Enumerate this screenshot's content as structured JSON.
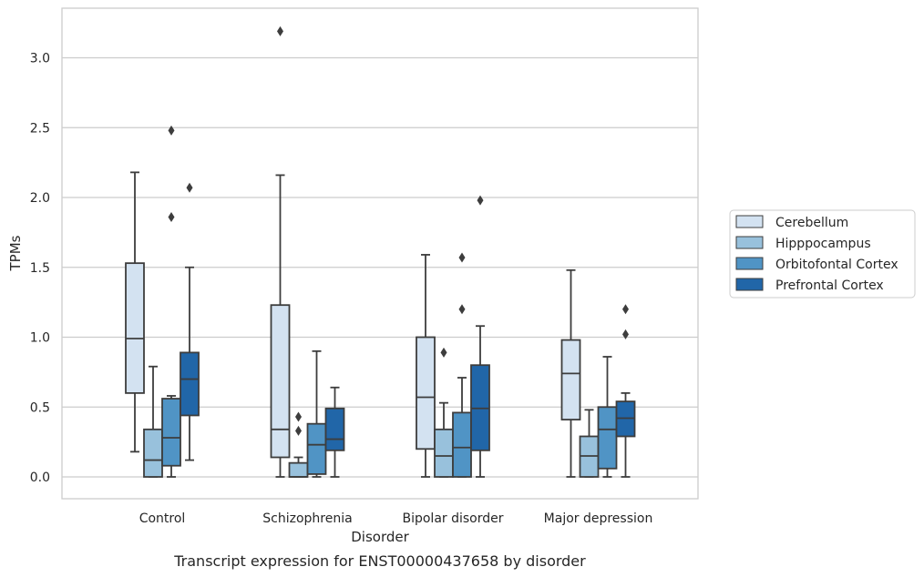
{
  "chart_data": {
    "type": "box",
    "title": "",
    "caption": "Transcript expression for ENST00000437658 by disorder",
    "xlabel": "Disorder",
    "ylabel": "TPMs",
    "ylim": [
      -0.15,
      3.35
    ],
    "yticks": [
      "0.0",
      "0.5",
      "1.0",
      "1.5",
      "2.0",
      "2.5",
      "3.0"
    ],
    "grid": "horizontal",
    "legend_position": "right",
    "categories": [
      "Control",
      "Schizophrenia",
      "Bipolar disorder",
      "Major depression"
    ],
    "series": [
      {
        "name": "Cerebellum",
        "color": "#d3e2f1",
        "boxes": [
          {
            "whislo": 0.18,
            "q1": 0.6,
            "med": 0.99,
            "q3": 1.53,
            "whishi": 2.18,
            "fliers": []
          },
          {
            "whislo": 0.0,
            "q1": 0.14,
            "med": 0.34,
            "q3": 1.23,
            "whishi": 2.16,
            "fliers": [
              3.19
            ]
          },
          {
            "whislo": 0.0,
            "q1": 0.2,
            "med": 0.57,
            "q3": 1.0,
            "whishi": 1.59,
            "fliers": []
          },
          {
            "whislo": 0.0,
            "q1": 0.41,
            "med": 0.74,
            "q3": 0.98,
            "whishi": 1.48,
            "fliers": []
          }
        ]
      },
      {
        "name": "Hipppocampus",
        "color": "#98c1dc",
        "boxes": [
          {
            "whislo": 0.0,
            "q1": 0.0,
            "med": 0.12,
            "q3": 0.34,
            "whishi": 0.79,
            "fliers": []
          },
          {
            "whislo": 0.0,
            "q1": 0.0,
            "med": 0.0,
            "q3": 0.1,
            "whishi": 0.14,
            "fliers": [
              0.33,
              0.43
            ]
          },
          {
            "whislo": 0.0,
            "q1": 0.0,
            "med": 0.15,
            "q3": 0.34,
            "whishi": 0.53,
            "fliers": [
              0.89
            ]
          },
          {
            "whislo": 0.0,
            "q1": 0.0,
            "med": 0.15,
            "q3": 0.29,
            "whishi": 0.48,
            "fliers": []
          }
        ]
      },
      {
        "name": "Orbitofontal Cortex",
        "color": "#5094c5",
        "boxes": [
          {
            "whislo": 0.0,
            "q1": 0.08,
            "med": 0.28,
            "q3": 0.56,
            "whishi": 0.58,
            "fliers": [
              1.86,
              2.48
            ]
          },
          {
            "whislo": 0.0,
            "q1": 0.02,
            "med": 0.23,
            "q3": 0.38,
            "whishi": 0.9,
            "fliers": []
          },
          {
            "whislo": 0.0,
            "q1": 0.0,
            "med": 0.21,
            "q3": 0.46,
            "whishi": 0.71,
            "fliers": [
              1.2,
              1.57
            ]
          },
          {
            "whislo": 0.0,
            "q1": 0.06,
            "med": 0.34,
            "q3": 0.5,
            "whishi": 0.86,
            "fliers": []
          }
        ]
      },
      {
        "name": "Prefrontal Cortex",
        "color": "#2166a8",
        "boxes": [
          {
            "whislo": 0.12,
            "q1": 0.44,
            "med": 0.7,
            "q3": 0.89,
            "whishi": 1.5,
            "fliers": [
              2.07
            ]
          },
          {
            "whislo": 0.0,
            "q1": 0.19,
            "med": 0.27,
            "q3": 0.49,
            "whishi": 0.64,
            "fliers": []
          },
          {
            "whislo": 0.0,
            "q1": 0.19,
            "med": 0.49,
            "q3": 0.8,
            "whishi": 1.08,
            "fliers": [
              1.98
            ]
          },
          {
            "whislo": 0.0,
            "q1": 0.29,
            "med": 0.42,
            "q3": 0.54,
            "whishi": 0.6,
            "fliers": [
              1.02,
              1.2
            ]
          }
        ]
      }
    ]
  }
}
